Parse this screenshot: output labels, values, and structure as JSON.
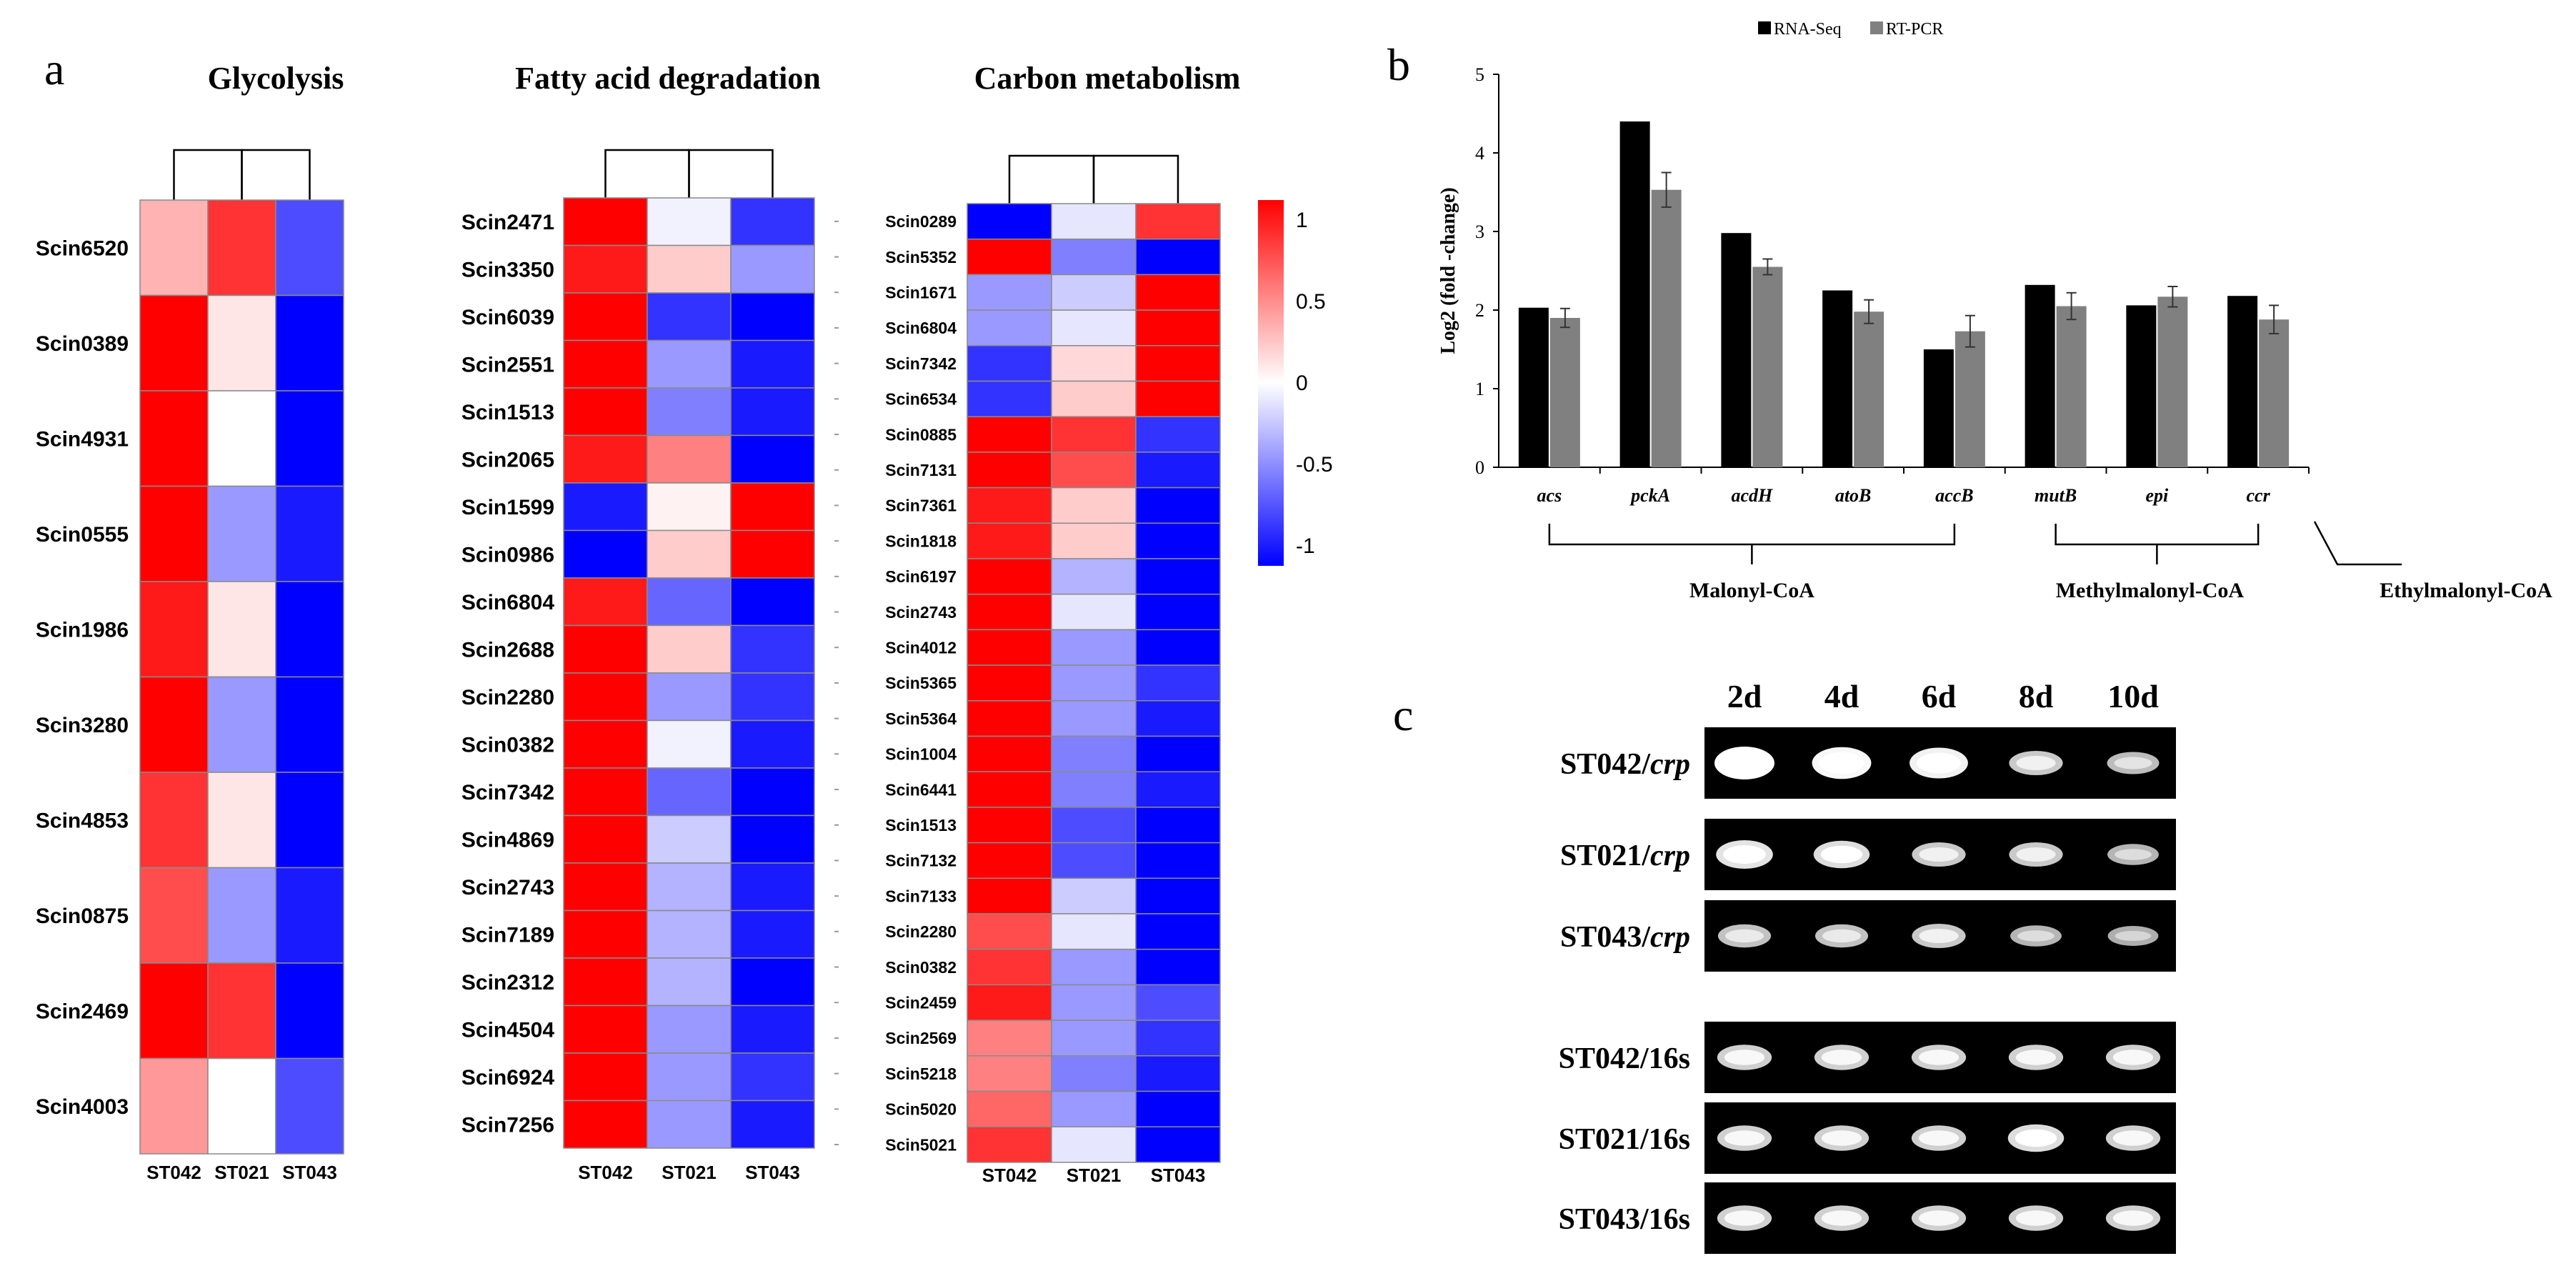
{
  "panel_labels": {
    "a": "a",
    "b": "b",
    "c": "c"
  },
  "colors": {
    "high": "#ff0000",
    "mid": "#ffffff",
    "low": "#0000ff",
    "rna": "#000000",
    "rt": "#808080"
  },
  "chart_data": [
    {
      "type": "heatmap",
      "title": "Glycolysis",
      "columns": [
        "ST042",
        "ST021",
        "ST043"
      ],
      "rows": [
        "Scin6520",
        "Scin0389",
        "Scin4931",
        "Scin0555",
        "Scin1986",
        "Scin3280",
        "Scin4853",
        "Scin0875",
        "Scin2469",
        "Scin4003"
      ],
      "values": [
        [
          0.3,
          0.8,
          -0.7
        ],
        [
          1.0,
          0.1,
          -1.0
        ],
        [
          1.0,
          0.0,
          -1.0
        ],
        [
          1.0,
          -0.4,
          -0.9
        ],
        [
          0.9,
          0.1,
          -1.0
        ],
        [
          1.0,
          -0.4,
          -1.0
        ],
        [
          0.8,
          0.1,
          -1.0
        ],
        [
          0.7,
          -0.4,
          -0.9
        ],
        [
          1.0,
          0.8,
          -1.0
        ],
        [
          0.4,
          0.0,
          -0.7
        ]
      ]
    },
    {
      "type": "heatmap",
      "title": "Fatty acid degradation",
      "columns": [
        "ST042",
        "ST021",
        "ST043"
      ],
      "rows": [
        "Scin2471",
        "Scin3350",
        "Scin6039",
        "Scin2551",
        "Scin1513",
        "Scin2065",
        "Scin1599",
        "Scin0986",
        "Scin6804",
        "Scin2688",
        "Scin2280",
        "Scin0382",
        "Scin7342",
        "Scin4869",
        "Scin2743",
        "Scin7189",
        "Scin2312",
        "Scin4504",
        "Scin6924",
        "Scin7256"
      ],
      "values": [
        [
          1.0,
          -0.05,
          -0.8
        ],
        [
          0.9,
          0.2,
          -0.4
        ],
        [
          1.0,
          -0.8,
          -1.0
        ],
        [
          1.0,
          -0.4,
          -0.9
        ],
        [
          1.0,
          -0.5,
          -0.9
        ],
        [
          0.9,
          0.5,
          -1.0
        ],
        [
          -0.9,
          0.05,
          1.0
        ],
        [
          -1.0,
          0.2,
          1.0
        ],
        [
          0.9,
          -0.6,
          -1.0
        ],
        [
          1.0,
          0.2,
          -0.8
        ],
        [
          1.0,
          -0.4,
          -0.8
        ],
        [
          1.0,
          -0.05,
          -0.9
        ],
        [
          1.0,
          -0.6,
          -1.0
        ],
        [
          1.0,
          -0.2,
          -1.0
        ],
        [
          1.0,
          -0.3,
          -0.9
        ],
        [
          1.0,
          -0.3,
          -0.9
        ],
        [
          1.0,
          -0.3,
          -1.0
        ],
        [
          1.0,
          -0.4,
          -0.9
        ],
        [
          1.0,
          -0.4,
          -0.8
        ],
        [
          1.0,
          -0.4,
          -0.9
        ]
      ]
    },
    {
      "type": "heatmap",
      "title": "Carbon metabolism",
      "columns": [
        "ST042",
        "ST021",
        "ST043"
      ],
      "rows": [
        "Scin0289",
        "Scin5352",
        "Scin1671",
        "Scin6804",
        "Scin7342",
        "Scin6534",
        "Scin0885",
        "Scin7131",
        "Scin7361",
        "Scin1818",
        "Scin6197",
        "Scin2743",
        "Scin4012",
        "Scin5365",
        "Scin5364",
        "Scin1004",
        "Scin6441",
        "Scin1513",
        "Scin7132",
        "Scin7133",
        "Scin2280",
        "Scin0382",
        "Scin2459",
        "Scin2569",
        "Scin5218",
        "Scin5020",
        "Scin5021"
      ],
      "values": [
        [
          -1.0,
          -0.1,
          0.8
        ],
        [
          1.0,
          -0.5,
          -1.0
        ],
        [
          -0.4,
          -0.2,
          1.0
        ],
        [
          -0.4,
          -0.1,
          1.0
        ],
        [
          -0.8,
          0.15,
          1.0
        ],
        [
          -0.8,
          0.2,
          1.0
        ],
        [
          1.0,
          0.8,
          -0.8
        ],
        [
          1.0,
          0.7,
          -0.9
        ],
        [
          0.9,
          0.2,
          -1.0
        ],
        [
          0.9,
          0.2,
          -1.0
        ],
        [
          1.0,
          -0.3,
          -1.0
        ],
        [
          1.0,
          -0.1,
          -1.0
        ],
        [
          1.0,
          -0.4,
          -1.0
        ],
        [
          1.0,
          -0.4,
          -0.8
        ],
        [
          1.0,
          -0.4,
          -0.9
        ],
        [
          1.0,
          -0.5,
          -1.0
        ],
        [
          1.0,
          -0.5,
          -0.9
        ],
        [
          1.0,
          -0.7,
          -1.0
        ],
        [
          1.0,
          -0.7,
          -1.0
        ],
        [
          1.0,
          -0.2,
          -1.0
        ],
        [
          0.7,
          -0.1,
          -1.0
        ],
        [
          0.8,
          -0.4,
          -1.0
        ],
        [
          0.9,
          -0.4,
          -0.7
        ],
        [
          0.5,
          -0.4,
          -0.8
        ],
        [
          0.5,
          -0.5,
          -0.9
        ],
        [
          0.6,
          -0.4,
          -1.0
        ],
        [
          0.8,
          -0.1,
          -1.0
        ]
      ]
    },
    {
      "type": "bar",
      "title": "",
      "categories": [
        "acs",
        "pckA",
        "acdH",
        "atoB",
        "accB",
        "mutB",
        "epi",
        "ccr"
      ],
      "series": [
        {
          "name": "RNA-Seq",
          "values": [
            2.03,
            4.4,
            2.98,
            2.25,
            1.5,
            2.32,
            2.06,
            2.18
          ]
        },
        {
          "name": "RT-PCR",
          "values": [
            1.9,
            3.53,
            2.55,
            1.98,
            1.73,
            2.05,
            2.17,
            1.88
          ],
          "errors": [
            0.12,
            0.22,
            0.1,
            0.15,
            0.2,
            0.17,
            0.13,
            0.18
          ]
        }
      ],
      "xlabel": "",
      "ylabel": "Log2 (fold -change)",
      "ylim": [
        0,
        5
      ],
      "yticks": [
        "0",
        "1",
        "2",
        "3",
        "4",
        "5"
      ],
      "groups": [
        {
          "label": "Malonyl-CoA",
          "members": [
            "acs",
            "pckA",
            "acdH",
            "atoB",
            "accB"
          ]
        },
        {
          "label": "Methylmalonyl-CoA",
          "members": [
            "mutB",
            "epi",
            "ccr"
          ]
        },
        {
          "label": "Ethylmalonyl-CoA",
          "members": [
            "ccr"
          ]
        }
      ]
    }
  ],
  "legend": {
    "ticks": [
      "1",
      "0.5",
      "0",
      "-0.5",
      "-1"
    ],
    "bar_series": [
      "RNA-Seq",
      "RT-PCR"
    ]
  },
  "gel": {
    "columns": [
      "2d",
      "4d",
      "6d",
      "8d",
      "10d"
    ],
    "rows": [
      {
        "sample": "ST042/",
        "gene": "crp",
        "intensities": [
          1.0,
          0.95,
          0.9,
          0.6,
          0.5
        ]
      },
      {
        "sample": "ST021/",
        "gene": "crp",
        "intensities": [
          0.8,
          0.75,
          0.6,
          0.6,
          0.45
        ]
      },
      {
        "sample": "ST043/",
        "gene": "crp",
        "intensities": [
          0.55,
          0.55,
          0.6,
          0.45,
          0.4
        ]
      },
      {
        "sample": "ST042/16s",
        "gene": "",
        "intensities": [
          0.65,
          0.65,
          0.65,
          0.65,
          0.65
        ]
      },
      {
        "sample": "ST021/16s",
        "gene": "",
        "intensities": [
          0.65,
          0.65,
          0.65,
          0.75,
          0.65
        ]
      },
      {
        "sample": "ST043/16s",
        "gene": "",
        "intensities": [
          0.65,
          0.65,
          0.65,
          0.65,
          0.65
        ]
      }
    ]
  }
}
